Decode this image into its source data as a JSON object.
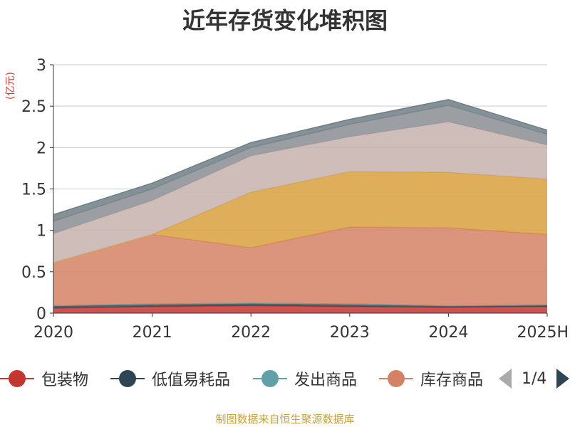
{
  "title": "近年存货变化堆积图",
  "unit_label": "(亿元)",
  "source": "制图数据来自恒生聚源数据库",
  "pager": {
    "text": "1/4"
  },
  "chart_data": {
    "type": "area",
    "stacked": true,
    "title": "近年存货变化堆积图",
    "ylabel": "(亿元)",
    "categories": [
      "2020",
      "2021",
      "2022",
      "2023",
      "2024",
      "2025H"
    ],
    "ylim": [
      0,
      3
    ],
    "yticks": [
      0,
      0.5,
      1,
      1.5,
      2,
      2.5,
      3
    ],
    "grid": true,
    "legend_position": "bottom",
    "series": [
      {
        "name": "包装物",
        "color": "#c23531",
        "values": [
          0.06,
          0.08,
          0.09,
          0.08,
          0.07,
          0.08
        ]
      },
      {
        "name": "低值易耗品",
        "color": "#2f4554",
        "values": [
          0.03,
          0.03,
          0.03,
          0.03,
          0.02,
          0.02
        ]
      },
      {
        "name": "发出商品",
        "color": "#61a0a8",
        "values": [
          0.0,
          0.0,
          0.0,
          0.0,
          0.0,
          0.0
        ]
      },
      {
        "name": "库存商品",
        "color": "#d48265",
        "values": [
          0.52,
          0.84,
          0.67,
          0.93,
          0.94,
          0.85
        ]
      },
      {
        "name": "",
        "color": "#d9a03e",
        "values": [
          0.0,
          0.0,
          0.67,
          0.67,
          0.67,
          0.67
        ]
      },
      {
        "name": "",
        "color": "#c7b2ad",
        "values": [
          0.35,
          0.41,
          0.44,
          0.42,
          0.61,
          0.41
        ]
      },
      {
        "name": "",
        "color": "#8a8d92",
        "values": [
          0.15,
          0.14,
          0.1,
          0.15,
          0.2,
          0.13
        ]
      },
      {
        "name": "",
        "color": "#6e7f86",
        "values": [
          0.08,
          0.07,
          0.06,
          0.06,
          0.07,
          0.05
        ]
      }
    ]
  },
  "legend": {
    "items": [
      {
        "label": "包装物",
        "color": "#c23531"
      },
      {
        "label": "低值易耗品",
        "color": "#2f4554"
      },
      {
        "label": "发出商品",
        "color": "#61a0a8"
      },
      {
        "label": "库存商品",
        "color": "#d48265"
      }
    ]
  }
}
